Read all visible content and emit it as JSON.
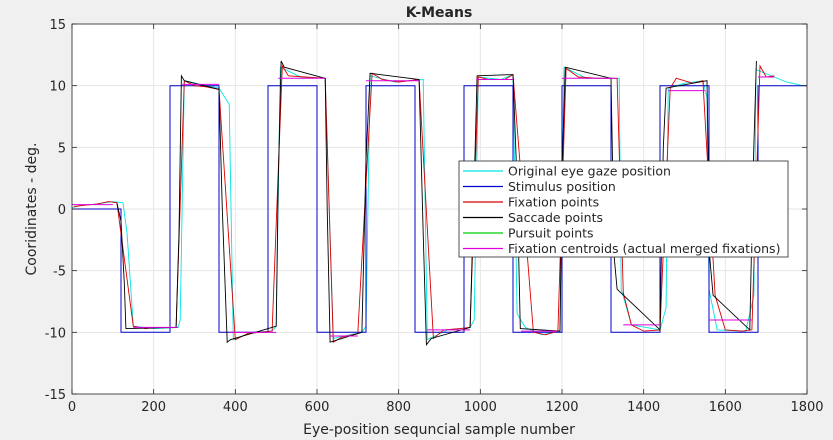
{
  "chart_data": {
    "type": "line",
    "title": "K-Means",
    "xlabel": "Eye-position sequncial sample number",
    "ylabel": "Cooridinates - deg.",
    "xlim": [
      0,
      1800
    ],
    "ylim": [
      -15,
      15
    ],
    "xticks": [
      "0",
      "200",
      "400",
      "600",
      "800",
      "1000",
      "1200",
      "1400",
      "1600",
      "1800"
    ],
    "yticks": [
      "-15",
      "-10",
      "-5",
      "0",
      "5",
      "10",
      "15"
    ],
    "xtick_values": [
      0,
      200,
      400,
      600,
      800,
      1000,
      1200,
      1400,
      1600,
      1800
    ],
    "ytick_values": [
      -15,
      -10,
      -5,
      0,
      5,
      10,
      15
    ],
    "grid": true,
    "legend_position": "center-right",
    "series": [
      {
        "name": "Original eye gaze position",
        "color": "#00e5e5",
        "points": [
          [
            0,
            0.1
          ],
          [
            20,
            0.3
          ],
          [
            60,
            0.4
          ],
          [
            100,
            0.6
          ],
          [
            125,
            0.5
          ],
          [
            135,
            -2
          ],
          [
            150,
            -9.5
          ],
          [
            200,
            -9.7
          ],
          [
            260,
            -9.6
          ],
          [
            265,
            -9
          ],
          [
            275,
            10.4
          ],
          [
            330,
            10
          ],
          [
            360,
            9.8
          ],
          [
            385,
            8.5
          ],
          [
            395,
            -10.6
          ],
          [
            440,
            -10
          ],
          [
            490,
            -9.9
          ],
          [
            500,
            -9.5
          ],
          [
            510,
            11.5
          ],
          [
            560,
            10.7
          ],
          [
            620,
            10.6
          ],
          [
            640,
            -10.5
          ],
          [
            680,
            -10.2
          ],
          [
            710,
            -10
          ],
          [
            720,
            -9.5
          ],
          [
            730,
            10.8
          ],
          [
            790,
            10.3
          ],
          [
            860,
            10.5
          ],
          [
            870,
            -10.6
          ],
          [
            920,
            -9.8
          ],
          [
            975,
            -9.6
          ],
          [
            985,
            -9
          ],
          [
            995,
            10.7
          ],
          [
            1050,
            10.5
          ],
          [
            1080,
            10.9
          ],
          [
            1090,
            -8.5
          ],
          [
            1110,
            -9.6
          ],
          [
            1150,
            -10.2
          ],
          [
            1195,
            -9.9
          ],
          [
            1205,
            11.5
          ],
          [
            1260,
            10.6
          ],
          [
            1340,
            10.6
          ],
          [
            1345,
            -6.5
          ],
          [
            1370,
            -9.4
          ],
          [
            1440,
            -9.8
          ],
          [
            1455,
            -8
          ],
          [
            1460,
            9.8
          ],
          [
            1500,
            10.2
          ],
          [
            1545,
            10.4
          ],
          [
            1555,
            9
          ],
          [
            1560,
            -6.5
          ],
          [
            1580,
            -9.8
          ],
          [
            1650,
            -9.9
          ],
          [
            1670,
            -7
          ],
          [
            1675,
            11.3
          ],
          [
            1720,
            10.7
          ],
          [
            1750,
            10.3
          ],
          [
            1790,
            10.0
          ]
        ]
      },
      {
        "name": "Stimulus position",
        "color": "#0000cc",
        "points": [
          [
            0,
            0
          ],
          [
            120,
            0
          ],
          [
            120,
            -10
          ],
          [
            240,
            -10
          ],
          [
            240,
            10
          ],
          [
            360,
            10
          ],
          [
            360,
            -10
          ],
          [
            480,
            -10
          ],
          [
            480,
            10
          ],
          [
            600,
            10
          ],
          [
            600,
            -10
          ],
          [
            720,
            -10
          ],
          [
            720,
            10
          ],
          [
            840,
            10
          ],
          [
            840,
            -10
          ],
          [
            960,
            -10
          ],
          [
            960,
            10
          ],
          [
            1080,
            10
          ],
          [
            1080,
            -10
          ],
          [
            1200,
            -10
          ],
          [
            1200,
            10
          ],
          [
            1320,
            10
          ],
          [
            1320,
            -10
          ],
          [
            1440,
            -10
          ],
          [
            1440,
            10
          ],
          [
            1560,
            10
          ],
          [
            1560,
            -10
          ],
          [
            1680,
            -10
          ],
          [
            1680,
            10
          ],
          [
            1800,
            10
          ]
        ]
      },
      {
        "name": "Fixation points",
        "color": "#dd0000",
        "points": [
          [
            5,
            0.2
          ],
          [
            30,
            0.3
          ],
          [
            60,
            0.4
          ],
          [
            90,
            0.6
          ],
          [
            110,
            0.5
          ],
          [
            150,
            -9.5
          ],
          [
            180,
            -9.7
          ],
          [
            210,
            -9.6
          ],
          [
            255,
            -9.6
          ],
          [
            275,
            10.4
          ],
          [
            300,
            10
          ],
          [
            330,
            9.9
          ],
          [
            360,
            9.7
          ],
          [
            400,
            -10.6
          ],
          [
            430,
            -10.1
          ],
          [
            460,
            -10
          ],
          [
            490,
            -9.9
          ],
          [
            515,
            11.6
          ],
          [
            530,
            10.8
          ],
          [
            570,
            10.7
          ],
          [
            620,
            10.6
          ],
          [
            640,
            -10.8
          ],
          [
            660,
            -10.4
          ],
          [
            700,
            -10.1
          ],
          [
            735,
            11
          ],
          [
            760,
            10.5
          ],
          [
            800,
            10.3
          ],
          [
            850,
            10.5
          ],
          [
            885,
            -10.5
          ],
          [
            910,
            -9.8
          ],
          [
            950,
            -9.7
          ],
          [
            975,
            -9.6
          ],
          [
            995,
            10.7
          ],
          [
            1020,
            10.5
          ],
          [
            1060,
            10.5
          ],
          [
            1080,
            10.9
          ],
          [
            1130,
            -10
          ],
          [
            1160,
            -10.2
          ],
          [
            1190,
            -9.9
          ],
          [
            1210,
            11.4
          ],
          [
            1240,
            10.7
          ],
          [
            1290,
            10.6
          ],
          [
            1335,
            10.6
          ],
          [
            1350,
            -6.8
          ],
          [
            1370,
            -9.4
          ],
          [
            1400,
            -9.9
          ],
          [
            1440,
            -9.8
          ],
          [
            1465,
            9.8
          ],
          [
            1480,
            10.6
          ],
          [
            1520,
            10.2
          ],
          [
            1545,
            10.4
          ],
          [
            1575,
            -7
          ],
          [
            1600,
            -9.8
          ],
          [
            1640,
            -9.9
          ],
          [
            1665,
            -9.8
          ],
          [
            1685,
            11.6
          ],
          [
            1700,
            10.7
          ],
          [
            1720,
            10.8
          ]
        ]
      },
      {
        "name": "Saccade points",
        "color": "#000000",
        "points": [
          [
            110,
            0.5
          ],
          [
            120,
            -1
          ],
          [
            128,
            -6
          ],
          [
            132,
            -9.7
          ],
          [
            255,
            -9.6
          ],
          [
            262,
            -2
          ],
          [
            268,
            10.8
          ],
          [
            275,
            10.4
          ],
          [
            360,
            9.7
          ],
          [
            368,
            0
          ],
          [
            380,
            -10.8
          ],
          [
            388,
            -10.6
          ],
          [
            500,
            -9.5
          ],
          [
            505,
            2
          ],
          [
            512,
            12
          ],
          [
            520,
            11.5
          ],
          [
            620,
            10.6
          ],
          [
            625,
            0
          ],
          [
            632,
            -10.8
          ],
          [
            710,
            -10
          ],
          [
            720,
            4
          ],
          [
            730,
            11
          ],
          [
            850,
            10.5
          ],
          [
            860,
            -2
          ],
          [
            868,
            -11
          ],
          [
            880,
            -10.5
          ],
          [
            975,
            -9.6
          ],
          [
            985,
            2
          ],
          [
            992,
            10.8
          ],
          [
            1080,
            10.9
          ],
          [
            1090,
            2
          ],
          [
            1098,
            -9.7
          ],
          [
            1195,
            -9.9
          ],
          [
            1200,
            3
          ],
          [
            1208,
            11.5
          ],
          [
            1320,
            10.6
          ],
          [
            1328,
            -4
          ],
          [
            1335,
            -6.5
          ],
          [
            1440,
            -9.8
          ],
          [
            1448,
            5
          ],
          [
            1455,
            9.8
          ],
          [
            1555,
            10.4
          ],
          [
            1562,
            -4
          ],
          [
            1570,
            -7
          ],
          [
            1660,
            -9.8
          ],
          [
            1668,
            3
          ],
          [
            1676,
            12
          ]
        ]
      },
      {
        "name": "Pursuit points",
        "color": "#00cc00",
        "points": []
      },
      {
        "name": "Fixation centroids (actual merged fixations)",
        "color": "#dd00dd",
        "segments": [
          [
            0,
            100,
            0.35
          ],
          [
            150,
            260,
            -9.6
          ],
          [
            270,
            360,
            10.1
          ],
          [
            385,
            500,
            -10
          ],
          [
            505,
            620,
            10.6
          ],
          [
            630,
            700,
            -10.3
          ],
          [
            720,
            850,
            10.4
          ],
          [
            870,
            975,
            -9.8
          ],
          [
            990,
            1080,
            10.5
          ],
          [
            1100,
            1190,
            -9.9
          ],
          [
            1200,
            1330,
            10.6
          ],
          [
            1350,
            1440,
            -9.4
          ],
          [
            1460,
            1550,
            9.6
          ],
          [
            1560,
            1665,
            -9.0
          ],
          [
            1680,
            1720,
            10.7
          ]
        ]
      }
    ]
  }
}
